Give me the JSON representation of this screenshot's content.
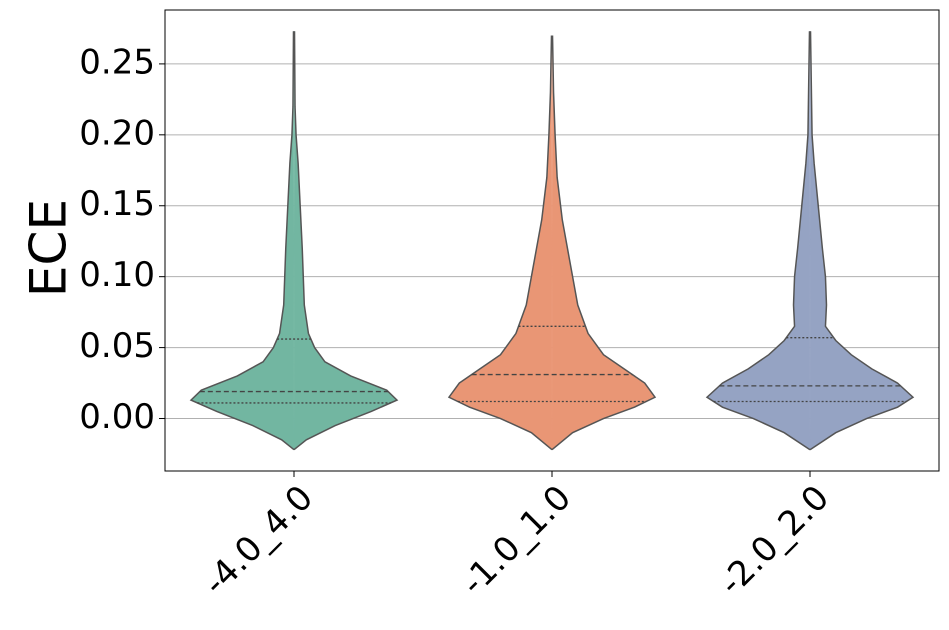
{
  "chart_data": {
    "type": "violin",
    "ylabel": "ECE",
    "categories": [
      "-4.0_4.0",
      "-1.0_1.0",
      "-2.0_2.0"
    ],
    "violins": [
      {
        "color": "#72b6a1",
        "y": [
          -0.022,
          -0.015,
          -0.005,
          0.005,
          0.013,
          0.02,
          0.03,
          0.04,
          0.05,
          0.06,
          0.08,
          0.1,
          0.12,
          0.15,
          0.18,
          0.2,
          0.22,
          0.273
        ],
        "width": [
          0,
          0.12,
          0.4,
          0.75,
          1.0,
          0.9,
          0.55,
          0.3,
          0.2,
          0.14,
          0.1,
          0.09,
          0.08,
          0.06,
          0.04,
          0.02,
          0.01,
          0.005
        ],
        "quartiles": [
          0.011,
          0.019,
          0.056
        ]
      },
      {
        "color": "#e99675",
        "y": [
          -0.022,
          -0.01,
          0.0,
          0.008,
          0.015,
          0.025,
          0.035,
          0.045,
          0.06,
          0.08,
          0.1,
          0.12,
          0.14,
          0.17,
          0.2,
          0.23,
          0.27
        ],
        "width": [
          0,
          0.2,
          0.5,
          0.8,
          1.0,
          0.9,
          0.7,
          0.5,
          0.35,
          0.25,
          0.2,
          0.15,
          0.1,
          0.05,
          0.03,
          0.015,
          0.005
        ],
        "quartiles": [
          0.012,
          0.031,
          0.065
        ]
      },
      {
        "color": "#95a3c3",
        "y": [
          -0.022,
          -0.01,
          0.0,
          0.008,
          0.015,
          0.025,
          0.035,
          0.045,
          0.055,
          0.065,
          0.08,
          0.1,
          0.12,
          0.15,
          0.18,
          0.2,
          0.273
        ],
        "width": [
          0,
          0.25,
          0.55,
          0.85,
          1.0,
          0.85,
          0.6,
          0.4,
          0.25,
          0.15,
          0.16,
          0.15,
          0.12,
          0.08,
          0.04,
          0.02,
          0.005
        ],
        "quartiles": [
          0.012,
          0.023,
          0.057
        ]
      }
    ],
    "ylim": [
      -0.037,
      0.288
    ],
    "yticks": [
      {
        "value": 0,
        "label": "0.00"
      },
      {
        "value": 0.05,
        "label": "0.05"
      },
      {
        "value": 0.1,
        "label": "0.10"
      },
      {
        "value": 0.15,
        "label": "0.15"
      },
      {
        "value": 0.2,
        "label": "0.20"
      },
      {
        "value": 0.25,
        "label": "0.25"
      }
    ],
    "grid": true
  }
}
